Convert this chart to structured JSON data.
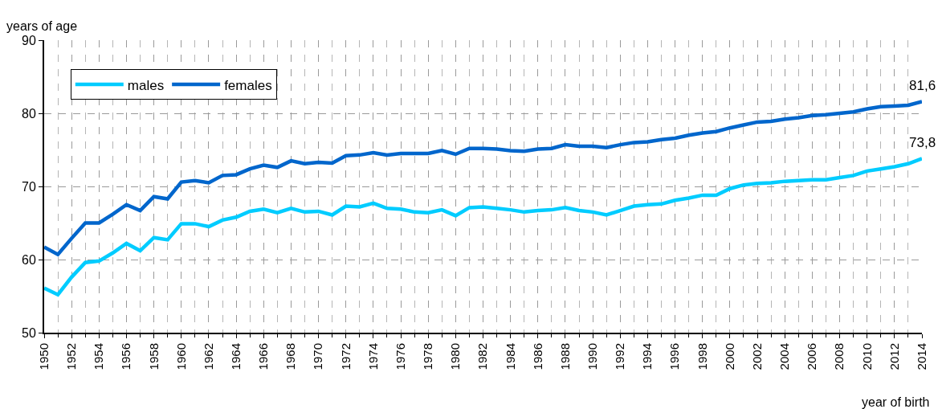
{
  "chart_data": {
    "type": "line",
    "ylabel": "years of age",
    "xlabel": "year of birth",
    "x": [
      1950,
      1951,
      1952,
      1953,
      1954,
      1955,
      1956,
      1957,
      1958,
      1959,
      1960,
      1961,
      1962,
      1963,
      1964,
      1965,
      1966,
      1967,
      1968,
      1969,
      1970,
      1971,
      1972,
      1973,
      1974,
      1975,
      1976,
      1977,
      1978,
      1979,
      1980,
      1981,
      1982,
      1983,
      1984,
      1985,
      1986,
      1987,
      1988,
      1989,
      1990,
      1991,
      1992,
      1993,
      1994,
      1995,
      1996,
      1997,
      1998,
      1999,
      2000,
      2001,
      2002,
      2003,
      2004,
      2005,
      2006,
      2007,
      2008,
      2009,
      2010,
      2011,
      2012,
      2013,
      2014
    ],
    "series": [
      {
        "name": "males",
        "color": "#00ccff",
        "values": [
          56.1,
          55.2,
          57.6,
          59.6,
          59.8,
          60.9,
          62.2,
          61.2,
          63.0,
          62.7,
          64.9,
          64.9,
          64.5,
          65.4,
          65.8,
          66.6,
          66.9,
          66.4,
          67.0,
          66.5,
          66.6,
          66.1,
          67.3,
          67.2,
          67.7,
          67.0,
          66.9,
          66.5,
          66.4,
          66.8,
          66.0,
          67.1,
          67.2,
          67.0,
          66.8,
          66.5,
          66.7,
          66.8,
          67.1,
          66.7,
          66.5,
          66.1,
          66.7,
          67.3,
          67.5,
          67.6,
          68.1,
          68.4,
          68.8,
          68.8,
          69.7,
          70.2,
          70.4,
          70.5,
          70.7,
          70.8,
          70.9,
          70.9,
          71.2,
          71.5,
          72.1,
          72.4,
          72.7,
          73.1,
          73.8
        ]
      },
      {
        "name": "females",
        "color": "#0066cc",
        "values": [
          61.7,
          60.7,
          62.9,
          65.0,
          65.0,
          66.2,
          67.5,
          66.7,
          68.6,
          68.3,
          70.6,
          70.8,
          70.5,
          71.5,
          71.6,
          72.4,
          72.9,
          72.6,
          73.5,
          73.1,
          73.3,
          73.2,
          74.2,
          74.3,
          74.6,
          74.3,
          74.5,
          74.5,
          74.5,
          74.9,
          74.4,
          75.2,
          75.2,
          75.1,
          74.9,
          74.8,
          75.1,
          75.2,
          75.7,
          75.5,
          75.5,
          75.3,
          75.7,
          76.0,
          76.1,
          76.4,
          76.6,
          77.0,
          77.3,
          77.5,
          78.0,
          78.4,
          78.8,
          78.9,
          79.2,
          79.4,
          79.7,
          79.8,
          80.0,
          80.2,
          80.6,
          80.9,
          81.0,
          81.1,
          81.6
        ]
      }
    ],
    "annotations": [
      {
        "text": "81,6",
        "x": 2014,
        "y": 81.6
      },
      {
        "text": "73,8",
        "x": 2014,
        "y": 73.8
      }
    ],
    "xlim": [
      1950,
      2014
    ],
    "xticks": [
      1950,
      1952,
      1954,
      1956,
      1958,
      1960,
      1962,
      1964,
      1966,
      1968,
      1970,
      1972,
      1974,
      1976,
      1978,
      1980,
      1982,
      1984,
      1986,
      1988,
      1990,
      1992,
      1994,
      1996,
      1998,
      2000,
      2002,
      2004,
      2006,
      2008,
      2010,
      2012,
      2014
    ],
    "ylim": [
      50,
      90
    ],
    "yticks": [
      50,
      60,
      70,
      80,
      90
    ],
    "grid": true,
    "legend": "top left",
    "marker": "none",
    "line_style": "solid"
  }
}
